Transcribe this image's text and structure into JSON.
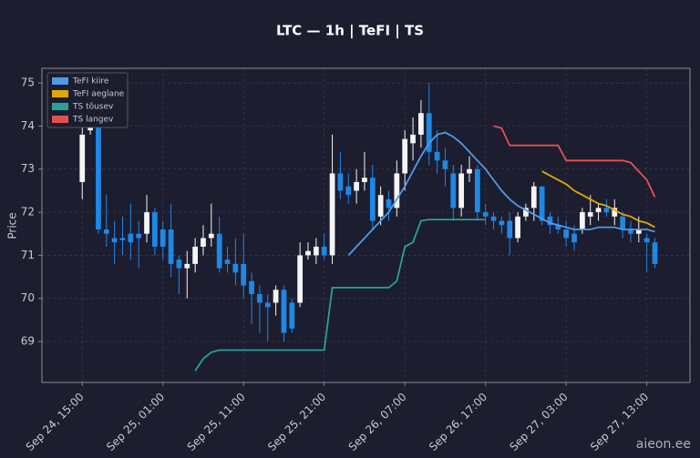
{
  "chart_data": {
    "type": "candlestick",
    "title": "LTC — 1h  |  TeFI  |  TS",
    "y_label": "Price",
    "watermark": "aieon.ee",
    "x": [
      0,
      1,
      2,
      3,
      4,
      5,
      6,
      7,
      8,
      9,
      10,
      11,
      12,
      13,
      14,
      15,
      16,
      17,
      18,
      19,
      20,
      21,
      22,
      23,
      24,
      25,
      26,
      27,
      28,
      29,
      30,
      31,
      32,
      33,
      34,
      35,
      36,
      37,
      38,
      39,
      40,
      41,
      42,
      43,
      44,
      45,
      46,
      47,
      48,
      49,
      50,
      51,
      52,
      53,
      54,
      55,
      56,
      57,
      58,
      59,
      60,
      61,
      62,
      63,
      64,
      65,
      66,
      67,
      68,
      69,
      70,
      71
    ],
    "open": [
      72.7,
      73.9,
      74.0,
      71.6,
      71.4,
      71.4,
      71.5,
      71.5,
      71.5,
      72.0,
      71.6,
      71.6,
      70.9,
      70.7,
      70.8,
      71.2,
      71.4,
      71.5,
      70.9,
      70.8,
      70.8,
      70.4,
      70.1,
      69.9,
      69.9,
      70.2,
      69.9,
      69.9,
      71.0,
      71.0,
      71.2,
      71.0,
      72.9,
      72.6,
      72.5,
      72.7,
      72.8,
      71.9,
      72.3,
      72.1,
      72.9,
      73.6,
      73.8,
      74.3,
      73.4,
      73.2,
      72.9,
      72.1,
      72.9,
      73.0,
      72.0,
      71.9,
      71.8,
      71.8,
      71.4,
      71.9,
      72.1,
      72.6,
      71.9,
      71.7,
      71.6,
      71.5,
      71.6,
      71.9,
      72.0,
      72.1,
      71.9,
      71.9,
      71.6,
      71.5,
      71.4,
      71.3
    ],
    "high": [
      74.0,
      74.2,
      74.1,
      72.4,
      71.8,
      71.9,
      72.2,
      71.8,
      72.4,
      72.1,
      71.8,
      72.2,
      71.0,
      71.1,
      71.4,
      71.7,
      72.2,
      71.9,
      71.2,
      71.4,
      71.5,
      70.6,
      70.3,
      70.1,
      70.3,
      70.3,
      70.0,
      71.3,
      71.3,
      71.4,
      71.5,
      73.8,
      73.4,
      72.9,
      73.0,
      73.4,
      73.1,
      72.6,
      72.5,
      73.2,
      73.9,
      74.2,
      74.6,
      75.0,
      73.9,
      73.5,
      73.1,
      73.1,
      73.3,
      73.1,
      72.2,
      72.0,
      71.9,
      72.0,
      72.0,
      72.2,
      72.7,
      72.6,
      72.0,
      71.9,
      71.8,
      71.7,
      72.1,
      72.4,
      72.2,
      72.3,
      72.3,
      72.0,
      71.8,
      71.9,
      71.5,
      71.4
    ],
    "low": [
      72.3,
      73.8,
      71.5,
      71.2,
      70.8,
      71.0,
      70.9,
      70.7,
      71.3,
      71.0,
      70.9,
      70.5,
      70.1,
      70.0,
      70.6,
      71.0,
      71.2,
      70.6,
      70.6,
      70.3,
      70.0,
      69.4,
      69.2,
      69.0,
      69.6,
      69.0,
      69.2,
      69.8,
      70.9,
      70.8,
      70.9,
      70.8,
      72.3,
      72.2,
      72.2,
      72.5,
      71.6,
      71.7,
      71.8,
      71.9,
      72.5,
      73.2,
      73.5,
      73.1,
      72.9,
      72.6,
      71.8,
      71.9,
      72.7,
      71.8,
      71.7,
      71.6,
      71.5,
      71.0,
      71.3,
      71.8,
      71.8,
      71.7,
      71.5,
      71.5,
      71.2,
      71.1,
      71.5,
      71.7,
      71.8,
      71.9,
      71.7,
      71.4,
      71.3,
      71.3,
      70.6,
      70.7
    ],
    "close": [
      73.8,
      74.0,
      71.6,
      71.5,
      71.3,
      71.35,
      71.3,
      71.4,
      72.0,
      71.2,
      71.2,
      70.8,
      70.7,
      70.8,
      71.2,
      71.4,
      71.5,
      70.7,
      70.8,
      70.6,
      70.3,
      70.1,
      69.9,
      69.8,
      70.2,
      69.2,
      69.3,
      71.0,
      71.1,
      71.2,
      71.0,
      72.9,
      72.5,
      72.4,
      72.7,
      72.8,
      71.8,
      72.4,
      72.1,
      72.9,
      73.7,
      73.8,
      74.3,
      73.4,
      73.2,
      73.0,
      72.1,
      72.9,
      73.0,
      72.0,
      71.9,
      71.8,
      71.7,
      71.4,
      71.9,
      72.1,
      72.6,
      71.8,
      71.7,
      71.6,
      71.4,
      71.3,
      72.0,
      72.0,
      72.1,
      72.0,
      72.1,
      71.6,
      71.5,
      71.6,
      71.3,
      70.8
    ],
    "up_color": "#f5f5f5",
    "down_color": "#1e88e5",
    "series": [
      {
        "name": "TeFI kiire",
        "color": "#4f9be8",
        "values": [
          null,
          null,
          null,
          null,
          null,
          null,
          null,
          null,
          null,
          null,
          null,
          null,
          null,
          null,
          null,
          null,
          null,
          null,
          null,
          null,
          null,
          null,
          null,
          null,
          null,
          null,
          null,
          null,
          null,
          null,
          null,
          null,
          null,
          71.0,
          71.2,
          71.4,
          71.6,
          71.8,
          72.0,
          72.3,
          72.6,
          72.95,
          73.3,
          73.6,
          73.8,
          73.85,
          73.75,
          73.6,
          73.4,
          73.2,
          73.0,
          72.75,
          72.5,
          72.3,
          72.15,
          72.05,
          71.95,
          71.85,
          71.75,
          71.7,
          71.65,
          71.6,
          71.6,
          71.6,
          71.65,
          71.65,
          71.65,
          71.6,
          71.6,
          71.6,
          71.6,
          71.55
        ]
      },
      {
        "name": "TeFI aeglane",
        "color": "#e0a800",
        "values": [
          null,
          null,
          null,
          null,
          null,
          null,
          null,
          null,
          null,
          null,
          null,
          null,
          null,
          null,
          null,
          null,
          null,
          null,
          null,
          null,
          null,
          null,
          null,
          null,
          null,
          null,
          null,
          null,
          null,
          null,
          null,
          null,
          null,
          null,
          null,
          null,
          null,
          null,
          null,
          null,
          null,
          null,
          null,
          null,
          null,
          null,
          null,
          null,
          null,
          null,
          null,
          null,
          null,
          null,
          null,
          null,
          null,
          72.95,
          72.85,
          72.75,
          72.65,
          72.5,
          72.4,
          72.3,
          72.2,
          72.15,
          72.05,
          71.95,
          71.9,
          71.8,
          71.75,
          71.65
        ]
      },
      {
        "name": "TS tõusev",
        "color": "#2aa198",
        "values": [
          null,
          null,
          null,
          null,
          null,
          null,
          null,
          null,
          null,
          null,
          null,
          null,
          null,
          null,
          68.32,
          68.6,
          68.75,
          68.8,
          68.8,
          68.8,
          68.8,
          68.8,
          68.8,
          68.8,
          68.8,
          68.8,
          68.8,
          68.8,
          68.8,
          68.8,
          68.8,
          70.25,
          70.25,
          70.25,
          70.25,
          70.25,
          70.25,
          70.25,
          70.25,
          70.4,
          71.2,
          71.3,
          71.8,
          71.83,
          71.83,
          71.83,
          71.83,
          71.83,
          71.83,
          71.83,
          71.83,
          null,
          null,
          null,
          null,
          null,
          null,
          null,
          null,
          null,
          null,
          null,
          null,
          null,
          null,
          null,
          null,
          null,
          null,
          null,
          null,
          null
        ]
      },
      {
        "name": "TS langev",
        "color": "#e05252",
        "values": [
          null,
          null,
          null,
          null,
          null,
          null,
          null,
          null,
          null,
          null,
          null,
          null,
          null,
          null,
          null,
          null,
          null,
          null,
          null,
          null,
          null,
          null,
          null,
          null,
          null,
          null,
          null,
          null,
          null,
          null,
          null,
          null,
          null,
          null,
          null,
          null,
          null,
          null,
          null,
          null,
          null,
          null,
          null,
          null,
          null,
          null,
          null,
          null,
          null,
          null,
          null,
          74.0,
          73.95,
          73.55,
          73.55,
          73.55,
          73.55,
          73.55,
          73.55,
          73.55,
          73.2,
          73.2,
          73.2,
          73.2,
          73.2,
          73.2,
          73.2,
          73.2,
          73.15,
          72.95,
          72.75,
          72.35
        ]
      }
    ],
    "xlim": [
      -5,
      75.35
    ],
    "xticks": [
      {
        "value": 0,
        "label": "Sep 24, 15:00"
      },
      {
        "value": 10,
        "label": "Sep 25, 01:00"
      },
      {
        "value": 20,
        "label": "Sep 25, 11:00"
      },
      {
        "value": 30,
        "label": "Sep 25, 21:00"
      },
      {
        "value": 40,
        "label": "Sep 26, 07:00"
      },
      {
        "value": 50,
        "label": "Sep 26, 17:00"
      },
      {
        "value": 60,
        "label": "Sep 27, 03:00"
      },
      {
        "value": 70,
        "label": "Sep 27, 13:00"
      }
    ],
    "ylim": [
      68.05,
      75.34
    ],
    "yticks": [
      69,
      70,
      71,
      72,
      73,
      74,
      75
    ],
    "grid": true,
    "legend": "upper left"
  }
}
